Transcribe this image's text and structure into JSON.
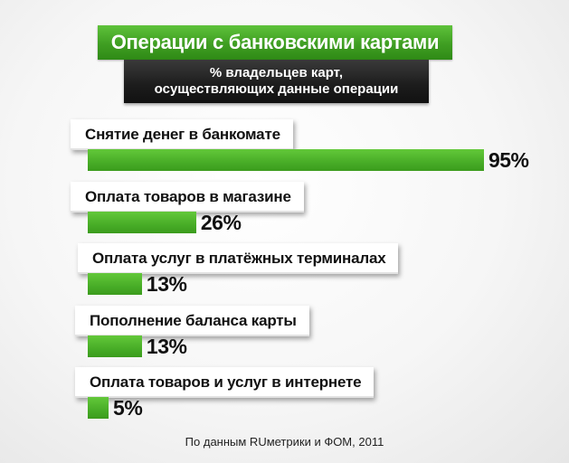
{
  "chart_data": {
    "type": "bar",
    "orientation": "horizontal",
    "title": "Операции с банковскими картами",
    "subtitle": [
      "% владельцев карт,",
      "осуществляющих данные операции"
    ],
    "categories": [
      "Снятие денег в банкомате",
      "Оплата товаров в магазине",
      "Оплата услуг в платёжных терминалах",
      "Пополнение баланса карты",
      "Оплата товаров и услуг в интернете"
    ],
    "values": [
      95,
      26,
      13,
      13,
      5
    ],
    "value_suffix": "%",
    "xlim": [
      0,
      100
    ],
    "grid": false,
    "legend": "none",
    "source": "По данным RUметрики и ФОМ, 2011",
    "colors": {
      "bar": "#4caf2a",
      "title_bg": "#43a126",
      "subtitle_bg": "#1c1c1c"
    }
  }
}
